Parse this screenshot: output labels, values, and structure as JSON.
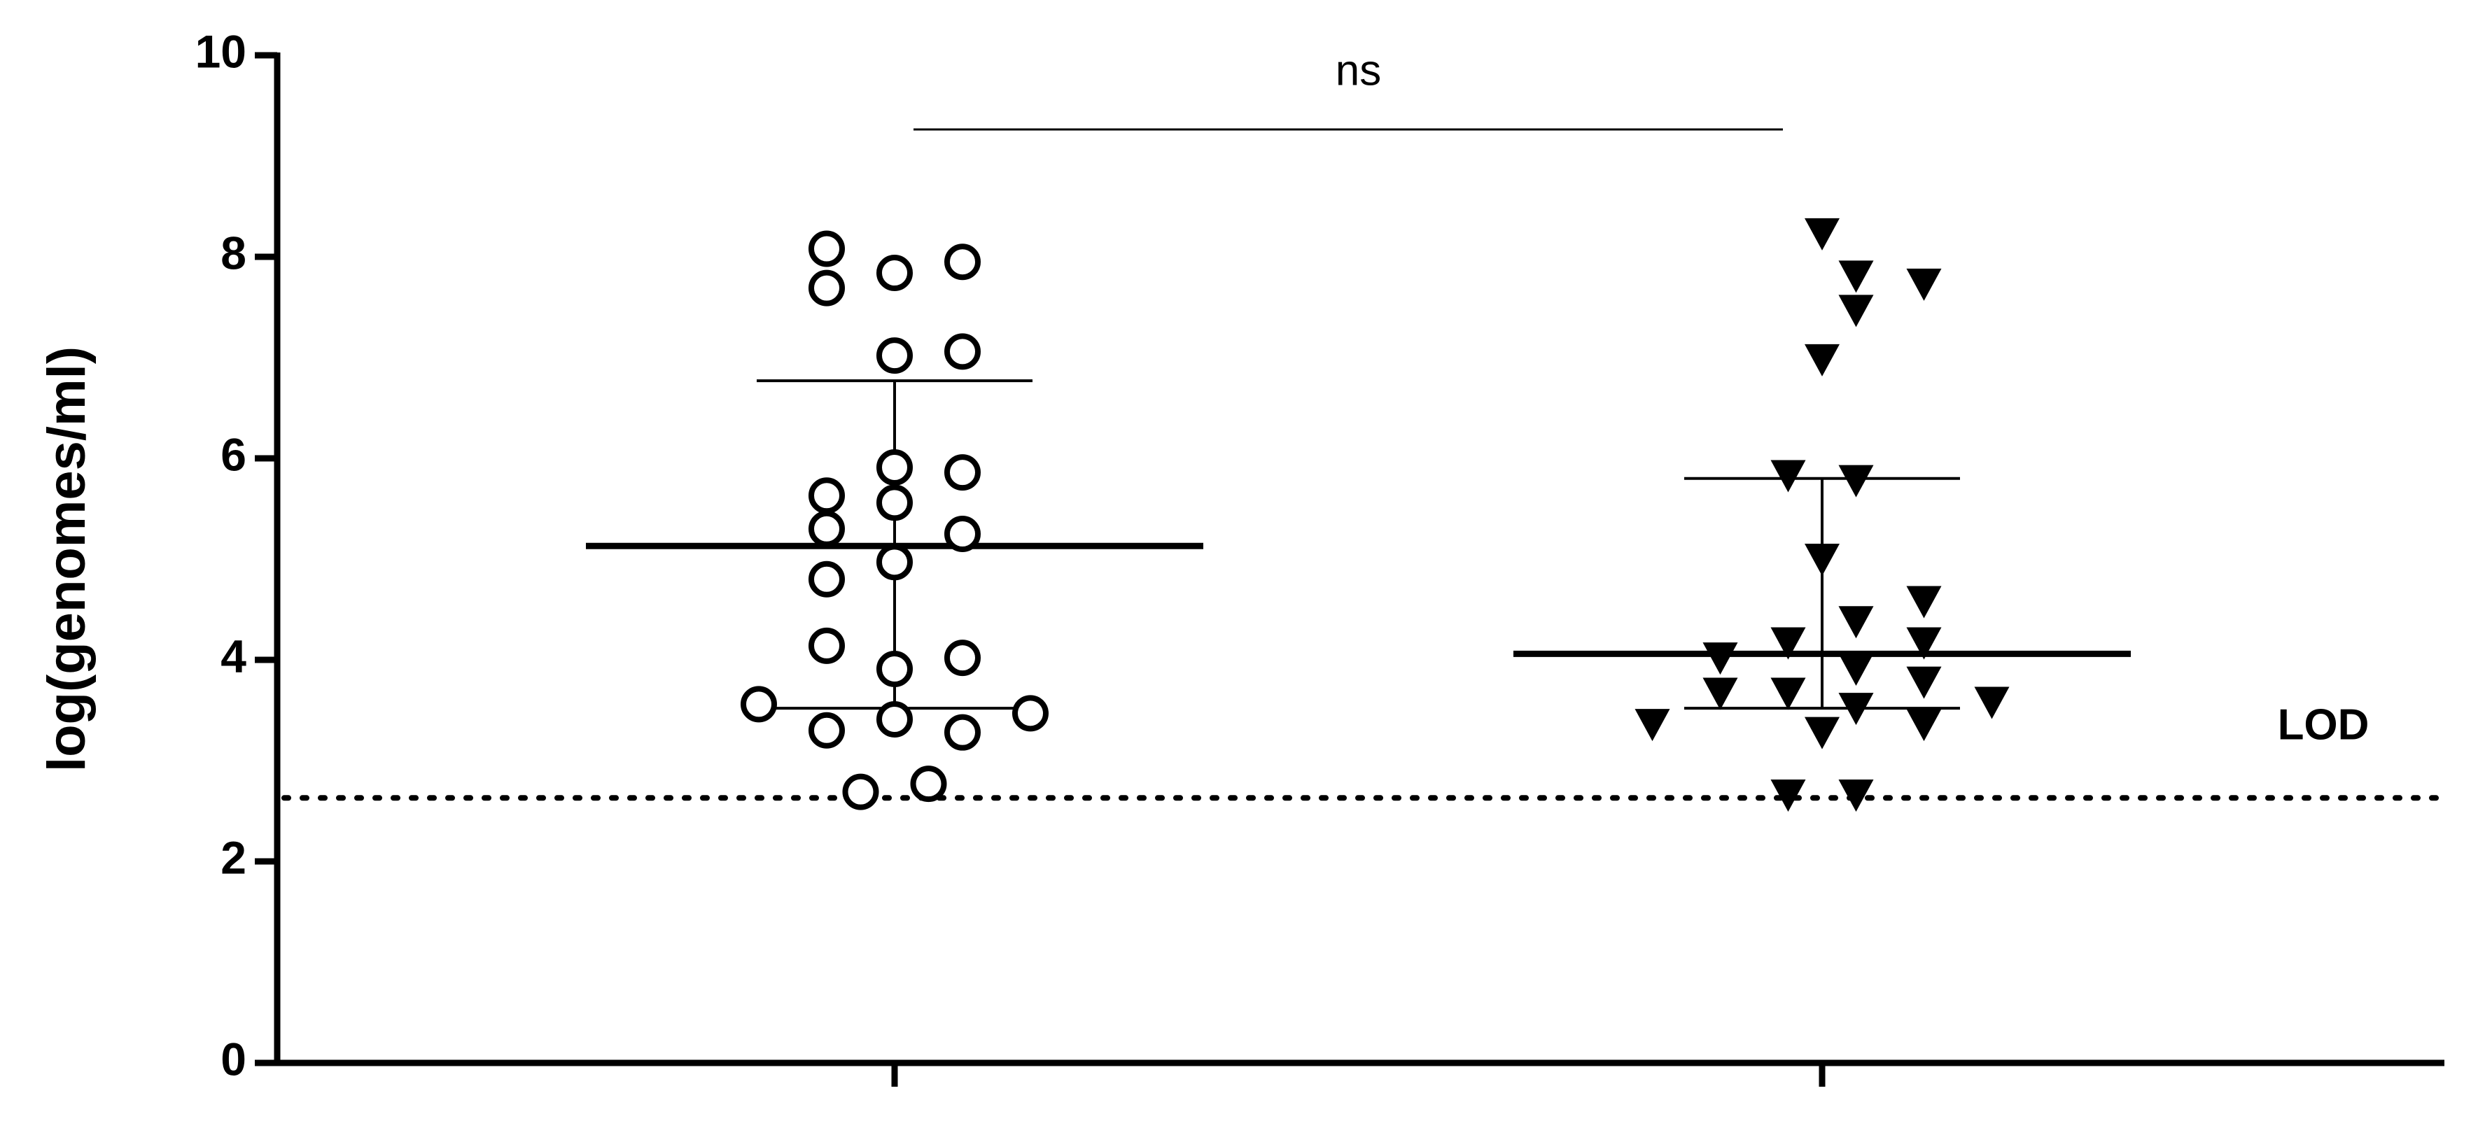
{
  "chart_data": {
    "type": "dot",
    "y_label": "log(genomes/ml)",
    "categories": [
      null,
      null
    ],
    "ylim": [
      0,
      10
    ],
    "yticks": [
      0,
      2,
      4,
      6,
      8,
      10
    ],
    "groups": [
      {
        "marker": "circle",
        "color": "#000000",
        "values": [
          8.08,
          7.95,
          7.84,
          7.69,
          7.02,
          7.06,
          5.91,
          5.86,
          5.63,
          5.56,
          5.3,
          5.25,
          4.97,
          4.8,
          4.14,
          4.02,
          3.91,
          3.56,
          3.47,
          3.41,
          3.3,
          3.28,
          2.77,
          2.69
        ],
        "median": 5.13,
        "q1": 3.52,
        "q3": 6.77
      },
      {
        "marker": "triangle-down",
        "color": "#000000",
        "values": [
          8.23,
          7.81,
          7.73,
          7.47,
          6.98,
          5.83,
          5.78,
          5.0,
          4.38,
          4.58,
          4.02,
          4.17,
          4.17,
          3.91,
          3.67,
          3.67,
          3.78,
          3.58,
          3.36,
          3.28,
          3.52,
          3.36,
          2.66,
          2.66
        ],
        "median": 4.06,
        "q1": 3.52,
        "q3": 5.8
      }
    ],
    "reference_line": {
      "value": 2.63,
      "label": "LOD",
      "style": "dotted"
    },
    "significance": {
      "label": "ns",
      "from": 0,
      "to": 1
    }
  }
}
